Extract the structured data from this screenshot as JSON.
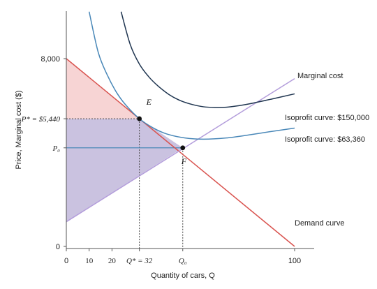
{
  "chart_data": {
    "type": "line",
    "title": "",
    "xlabel": "Quantity of cars, Q",
    "ylabel": "Price, Marginal cost ($)",
    "xlim": [
      0,
      100
    ],
    "ylim": [
      0,
      10000
    ],
    "x_ticks": [
      {
        "value": 0,
        "label": "0"
      },
      {
        "value": 10,
        "label": "10"
      },
      {
        "value": 20,
        "label": "20"
      },
      {
        "value": 32,
        "label": "Q* = 32"
      },
      {
        "value": 51,
        "label": "Q₀"
      },
      {
        "value": 100,
        "label": "100"
      }
    ],
    "y_ticks": [
      {
        "value": 0,
        "label": "0"
      },
      {
        "value": 4200,
        "label": "P₀"
      },
      {
        "value": 5440,
        "label": "P* = $5,440"
      },
      {
        "value": 8000,
        "label": "8,000"
      }
    ],
    "series": [
      {
        "name": "Demand curve",
        "color": "#d9534f",
        "x": [
          0,
          100
        ],
        "y": [
          8000,
          0
        ]
      },
      {
        "name": "Marginal cost",
        "color": "#b39ddb",
        "x": [
          0,
          100
        ],
        "y": [
          1050,
          7150
        ]
      },
      {
        "name": "Isoprofit curve: $63,360",
        "color": "#4a88b8",
        "x": [
          10,
          14,
          18,
          22,
          26,
          32,
          38,
          44,
          52,
          60,
          70,
          80,
          90,
          100
        ],
        "y": [
          10000,
          8260,
          7290,
          6560,
          6030,
          5440,
          5050,
          4790,
          4620,
          4570,
          4620,
          4750,
          4900,
          5040
        ]
      },
      {
        "name": "Isoprofit curve: $150,000",
        "color": "#1f3550",
        "x": [
          24,
          28,
          32,
          36,
          40,
          45,
          50,
          55,
          60,
          65,
          70,
          75,
          80,
          90,
          100
        ],
        "y": [
          10000,
          8600,
          7770,
          7240,
          6850,
          6470,
          6210,
          6050,
          5950,
          5920,
          5930,
          5990,
          6070,
          6280,
          6500
        ]
      }
    ],
    "points": [
      {
        "label": "E",
        "x": 32,
        "y": 5440
      },
      {
        "label": "F",
        "x": 51,
        "y": 4200
      }
    ],
    "regions": [
      {
        "name": "consumer-surplus",
        "color": "#f4c5c5",
        "points": [
          [
            0,
            8000
          ],
          [
            32,
            5440
          ],
          [
            0,
            5440
          ]
        ]
      },
      {
        "name": "producer-surplus",
        "color": "#b8aed6",
        "points": [
          [
            0,
            5440
          ],
          [
            32,
            5440
          ],
          [
            51,
            4200
          ],
          [
            0,
            1050
          ]
        ]
      }
    ],
    "grid": false,
    "legend": "labels at right end of curves"
  }
}
